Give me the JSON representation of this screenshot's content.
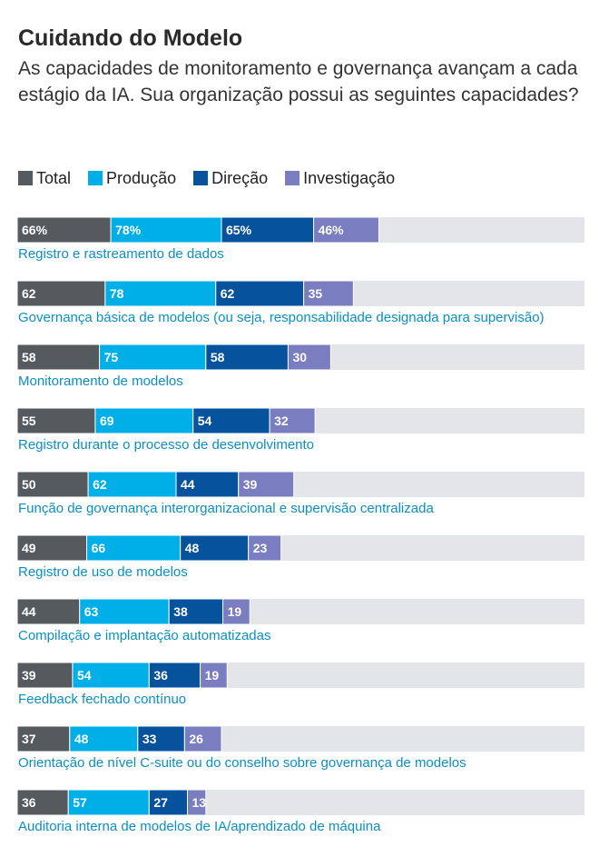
{
  "title": "Cuidando do Modelo",
  "subtitle": "As capacidades de monitoramento e governança avançam a cada estágio da IA. Sua organização possui as seguintes capacidades?",
  "colors": {
    "Total": "#555a5f",
    "Produção": "#00aee8",
    "Direção": "#07529c",
    "Investigação": "#7a7dbf",
    "track": "#e3e5e8",
    "label": "#0a8fc4",
    "value_text": "#ffffff"
  },
  "chart_data": {
    "type": "bar",
    "stacked": true,
    "orientation": "horizontal",
    "scale_max": 100,
    "legend_position": "top-left",
    "categories": [
      "Registro e rastreamento de dados",
      "Governança básica de modelos (ou seja, responsabilidade designada para supervisão)",
      "Monitoramento de modelos",
      "Registro durante o processo de desenvolvimento",
      "Função de governança interorganizacional e supervisão centralizada",
      "Registro de uso de modelos",
      "Compilação e implantação automatizadas",
      "Feedback fechado contínuo",
      "Orientação de nível C-suite ou do conselho sobre governança de modelos",
      "Auditoria interna de modelos de IA/aprendizado de máquina"
    ],
    "series": [
      {
        "name": "Total",
        "values": [
          66,
          62,
          58,
          55,
          50,
          49,
          44,
          39,
          37,
          36
        ]
      },
      {
        "name": "Produção",
        "values": [
          78,
          78,
          75,
          69,
          62,
          66,
          63,
          54,
          48,
          57
        ]
      },
      {
        "name": "Direção",
        "values": [
          65,
          62,
          58,
          54,
          44,
          48,
          38,
          36,
          33,
          27
        ]
      },
      {
        "name": "Investigação",
        "values": [
          46,
          35,
          30,
          32,
          39,
          23,
          19,
          19,
          26,
          13
        ]
      }
    ],
    "value_labels": [
      [
        "66%",
        "78%",
        "65%",
        "46%"
      ],
      [
        "62",
        "78",
        "62",
        "35"
      ],
      [
        "58",
        "75",
        "58",
        "30"
      ],
      [
        "55",
        "69",
        "54",
        "32"
      ],
      [
        "50",
        "62",
        "44",
        "39"
      ],
      [
        "49",
        "66",
        "48",
        "23"
      ],
      [
        "44",
        "63",
        "38",
        "19"
      ],
      [
        "39",
        "54",
        "36",
        "19"
      ],
      [
        "37",
        "48",
        "33",
        "26"
      ],
      [
        "36",
        "57",
        "27",
        "13"
      ]
    ]
  }
}
